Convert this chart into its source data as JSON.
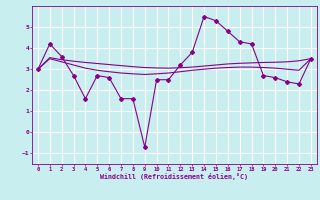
{
  "xlabel": "Windchill (Refroidissement éolien,°C)",
  "bg_color": "#c8eef0",
  "grid_color": "#ffffff",
  "line_color": "#880088",
  "xlim": [
    -0.5,
    23.5
  ],
  "ylim": [
    -1.5,
    6.0
  ],
  "yticks": [
    -1,
    0,
    1,
    2,
    3,
    4,
    5
  ],
  "xticks": [
    0,
    1,
    2,
    3,
    4,
    5,
    6,
    7,
    8,
    9,
    10,
    11,
    12,
    13,
    14,
    15,
    16,
    17,
    18,
    19,
    20,
    21,
    22,
    23
  ],
  "series1_x": [
    0,
    1,
    2,
    3,
    4,
    5,
    6,
    7,
    8,
    9,
    10,
    11,
    12,
    13,
    14,
    15,
    16,
    17,
    18,
    19,
    20,
    21,
    22,
    23
  ],
  "series1_y": [
    3.0,
    4.2,
    3.6,
    2.7,
    1.6,
    2.7,
    2.6,
    1.6,
    1.6,
    -0.7,
    2.5,
    2.5,
    3.2,
    3.8,
    5.5,
    5.3,
    4.8,
    4.3,
    4.2,
    2.7,
    2.6,
    2.4,
    2.3,
    3.5
  ],
  "series2_x": [
    0,
    1,
    2,
    3,
    4,
    5,
    6,
    7,
    8,
    9,
    10,
    11,
    12,
    13,
    14,
    15,
    16,
    17,
    18,
    19,
    20,
    21,
    22,
    23
  ],
  "series2_y": [
    3.0,
    3.55,
    3.45,
    3.38,
    3.32,
    3.27,
    3.22,
    3.17,
    3.12,
    3.08,
    3.06,
    3.05,
    3.07,
    3.1,
    3.15,
    3.2,
    3.25,
    3.28,
    3.3,
    3.32,
    3.33,
    3.35,
    3.4,
    3.5
  ],
  "series3_x": [
    0,
    1,
    2,
    3,
    4,
    5,
    6,
    7,
    8,
    9,
    10,
    11,
    12,
    13,
    14,
    15,
    16,
    17,
    18,
    19,
    20,
    21,
    22,
    23
  ],
  "series3_y": [
    3.0,
    3.5,
    3.35,
    3.2,
    3.05,
    2.95,
    2.88,
    2.82,
    2.78,
    2.75,
    2.78,
    2.82,
    2.88,
    2.95,
    3.0,
    3.05,
    3.08,
    3.1,
    3.1,
    3.08,
    3.05,
    3.0,
    2.95,
    3.5
  ]
}
